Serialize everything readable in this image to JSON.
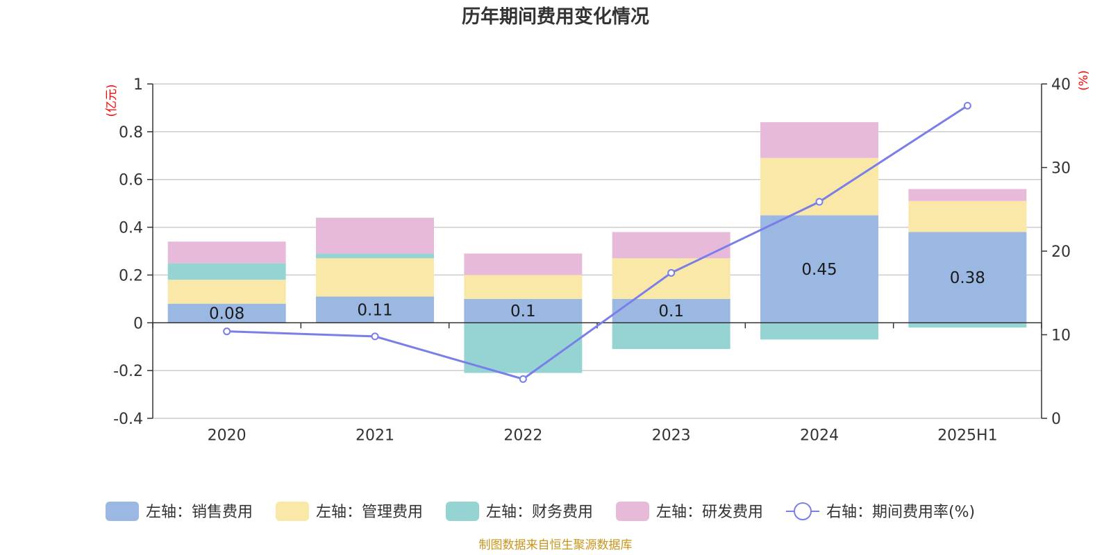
{
  "chart_data": {
    "type": "bar",
    "title": "历年期间费用变化情况",
    "categories": [
      "2020",
      "2021",
      "2022",
      "2023",
      "2024",
      "2025H1"
    ],
    "left_axis": {
      "unit": "(亿元)",
      "ylim": [
        -0.4,
        1
      ],
      "ticks": [
        "1",
        "0.8",
        "0.6",
        "0.4",
        "0.2",
        "0",
        "-0.2",
        "-0.4"
      ]
    },
    "right_axis": {
      "unit": "(%)",
      "ylim": [
        0,
        40
      ],
      "ticks": [
        "40",
        "30",
        "20",
        "10",
        "0"
      ]
    },
    "stacked": true,
    "series": [
      {
        "name": "左轴：销售费用",
        "color": "#9bb8e2",
        "values": [
          0.08,
          0.11,
          0.1,
          0.1,
          0.45,
          0.38
        ],
        "labels": [
          "0.08",
          "0.11",
          "0.1",
          "0.1",
          "0.45",
          "0.38"
        ]
      },
      {
        "name": "左轴：管理费用",
        "color": "#f9e8a8",
        "values": [
          0.1,
          0.16,
          0.1,
          0.17,
          0.24,
          0.13
        ]
      },
      {
        "name": "左轴：财务费用",
        "color": "#96d4d4",
        "values": [
          0.07,
          0.02,
          -0.21,
          -0.11,
          -0.07,
          -0.02
        ]
      },
      {
        "name": "左轴：研发费用",
        "color": "#e8bada",
        "values": [
          0.09,
          0.15,
          0.09,
          0.11,
          0.15,
          0.05
        ]
      }
    ],
    "line_series": {
      "name": "右轴：期间费用率(%)",
      "color": "#7a7ee8",
      "values": [
        10.4,
        9.8,
        4.7,
        17.4,
        25.9,
        37.4
      ]
    },
    "grid": true,
    "legend_position": "bottom"
  },
  "source_note": "制图数据来自恒生聚源数据库"
}
